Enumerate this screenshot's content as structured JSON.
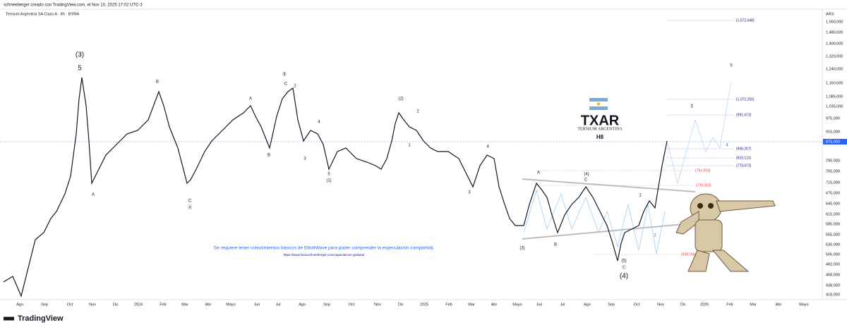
{
  "header": {
    "author_line": "schneeberger creado con TradingView.com, el Nov 10, 2025 17:02 UTC-3",
    "symbol": "Ternium Argentina SA Class A · 8h · BYMA"
  },
  "price_axis": {
    "unit": "ARS",
    "current": "875,000",
    "labels": [
      "1,560,000",
      "1,480,000",
      "1,400,000",
      "1,320,000",
      "1,240,000",
      "1,160,000",
      "1,085,000",
      "1,035,000",
      "975,000",
      "915,000",
      "795,000",
      "755,000",
      "715,000",
      "675,000",
      "645,000",
      "615,000",
      "585,000",
      "555,000",
      "530,000",
      "506,000",
      "482,000",
      "458,000",
      "438,000",
      "418,000"
    ]
  },
  "time_axis": {
    "labels": [
      "Ago",
      "Sep",
      "Oct",
      "Nov",
      "Dic",
      "2024",
      "Feb",
      "Mar",
      "Abr",
      "Mayo",
      "Jun",
      "Jul",
      "Ago",
      "Sep",
      "Oct",
      "Nov",
      "Dic",
      "2025",
      "Feb",
      "Mar",
      "Abr",
      "Mayo",
      "Jun",
      "Jul",
      "Ago",
      "Sep",
      "Oct",
      "Nov",
      "Dic",
      "2026",
      "Feb",
      "Mar",
      "Abr",
      "Mayo"
    ]
  },
  "logo": {
    "ticker": "TXAR",
    "company": "TERNIUM ARGENTINA",
    "code": "H8"
  },
  "levels": [
    "(1,572,648)",
    "(1,072,260)",
    "(991,673)",
    "(846,267)",
    "(810,113)",
    "(779,673)",
    "(761,003)",
    "(709,353)",
    "(508,166)"
  ],
  "wave_labels": [
    "(3)",
    "5",
    "B",
    "A",
    "C",
    "Ⓐ",
    "A",
    "Ⓑ",
    "C",
    "2",
    "B",
    "3",
    "4",
    "5",
    "(1)",
    "(2)",
    "2",
    "1",
    "3",
    "4",
    "A",
    "(4)",
    "C",
    "B",
    "(3)",
    "1",
    "2",
    "(5)",
    "Ⓒ",
    "(4)",
    "3",
    "4",
    "5"
  ],
  "note": {
    "text": "Se requiere tener conocimientos básicos de ElliottWave para poder comprender la especulación compartida.",
    "url": "https://www.favioschneeberger.com/capacitacion-gratuita/"
  },
  "footer": {
    "brand": "TradingView"
  }
}
